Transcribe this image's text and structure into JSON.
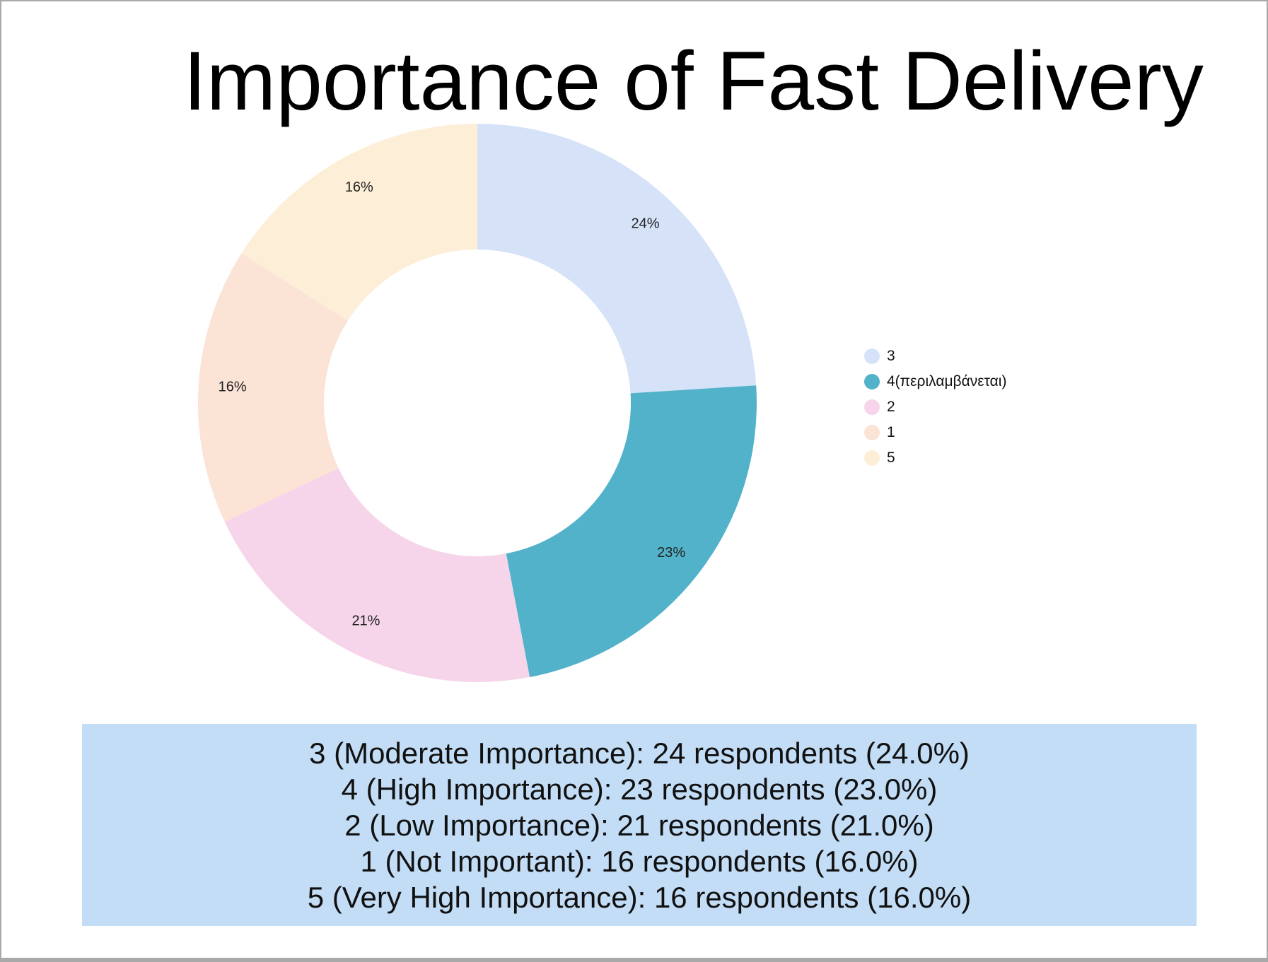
{
  "chart_data": {
    "type": "pie",
    "title": "Importance of Fast Delivery",
    "hole": true,
    "categories": [
      "3",
      "4(περιλαμβάνεται)",
      "2",
      "1",
      "5"
    ],
    "values": [
      24,
      23,
      21,
      16,
      16
    ],
    "data_labels": [
      "24%",
      "23%",
      "21%",
      "16%",
      "16%"
    ],
    "colors": [
      "#d6e2f8",
      "#52b2c9",
      "#f6d5ea",
      "#fbe3d6",
      "#fdeed8"
    ],
    "legend_position": "right"
  },
  "summary": {
    "lines": [
      "3 (Moderate Importance): 24 respondents (24.0%)",
      "4 (High Importance): 23 respondents (23.0%)",
      "2 (Low Importance): 21 respondents (21.0%)",
      "1 (Not Important): 16 respondents (16.0%)",
      "5 (Very High Importance): 16 respondents (16.0%)"
    ]
  }
}
